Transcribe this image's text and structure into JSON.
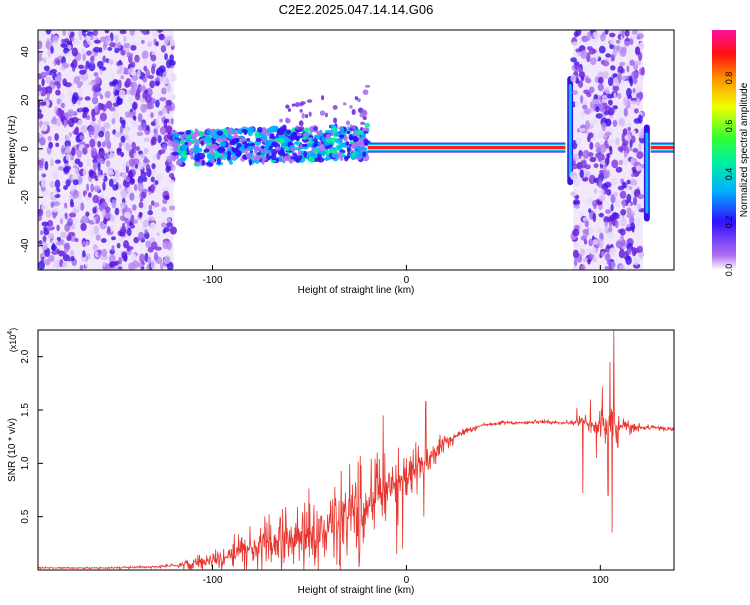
{
  "figure": {
    "title": "C2E2.2025.047.14.14.G06"
  },
  "chart_data": [
    {
      "type": "heatmap",
      "xlabel": "Height of straight line (km)",
      "ylabel": "Frequency (Hz)",
      "xlim": [
        -190,
        138
      ],
      "ylim": [
        -50,
        49
      ],
      "xticks": [
        -100,
        0,
        100
      ],
      "xtick_labels": [
        "-100",
        "0",
        "100"
      ],
      "yticks": [
        -40,
        -20,
        0,
        20,
        40
      ],
      "ytick_labels": [
        "-40",
        "-20",
        "0",
        "20",
        "40"
      ],
      "grid": false,
      "colorbar": {
        "label": "Normalized spectral amplitude",
        "range": [
          0,
          1
        ],
        "ticks": [
          0.0,
          0.2,
          0.4,
          0.6,
          0.8
        ],
        "tick_labels": [
          "0.0",
          "0.2",
          "0.4",
          "0.6",
          "0.8"
        ],
        "colormap": "rainbow (white/purple low to red/magenta high)"
      },
      "regions": [
        {
          "x": [
            -190,
            -120
          ],
          "y": [
            -50,
            49
          ],
          "amplitude": [
            0.05,
            0.25
          ],
          "pattern": "broadband noise"
        },
        {
          "x": [
            -120,
            -20
          ],
          "y": [
            -6,
            6
          ],
          "amplitude": [
            0.1,
            0.5
          ],
          "pattern": "noisy band"
        },
        {
          "x": [
            -20,
            82
          ],
          "y": [
            0,
            1
          ],
          "amplitude": [
            0.9,
            1.0
          ],
          "pattern": "narrow tone"
        },
        {
          "x": [
            83,
            86
          ],
          "y": [
            -15,
            30
          ],
          "amplitude": [
            0.2,
            0.5
          ],
          "pattern": "vertical streak"
        },
        {
          "x": [
            86,
            122
          ],
          "y": [
            -50,
            49
          ],
          "amplitude": [
            0.05,
            0.25
          ],
          "pattern": "broadband noise"
        },
        {
          "x": [
            122,
            126
          ],
          "y": [
            -30,
            10
          ],
          "amplitude": [
            0.2,
            0.5
          ],
          "pattern": "vertical streak"
        },
        {
          "x": [
            126,
            138
          ],
          "y": [
            0,
            1
          ],
          "amplitude": [
            0.9,
            1.0
          ],
          "pattern": "narrow tone"
        }
      ],
      "colors": {
        "tone": "#ff2020",
        "band_mid": "#2080ff",
        "noise": "#7a30e0"
      }
    },
    {
      "type": "line",
      "xlabel": "Height of straight line (km)",
      "ylabel": "SNR (10 * v/v)",
      "y_multiplier": "(x10⁴)",
      "y_multiplier_base": "(x10",
      "y_multiplier_exp": "4",
      "y_multiplier_close": ")",
      "xlim": [
        -190,
        138
      ],
      "ylim": [
        0,
        2.25
      ],
      "xticks": [
        -100,
        0,
        100
      ],
      "xtick_labels": [
        "-100",
        "0",
        "100"
      ],
      "yticks": [
        0.5,
        1.0,
        1.5,
        2.0
      ],
      "ytick_labels": [
        "0.5",
        "1.0",
        "1.5",
        "2.0"
      ],
      "grid": false,
      "series": [
        {
          "color": "#e8352e",
          "x": [
            -190,
            -170,
            -150,
            -130,
            -120,
            -110,
            -100,
            -90,
            -80,
            -70,
            -60,
            -50,
            -40,
            -30,
            -20,
            -10,
            0,
            10,
            20,
            30,
            40,
            50,
            60,
            70,
            80,
            85,
            90,
            95,
            100,
            105,
            110,
            120,
            130,
            138
          ],
          "y": [
            0.02,
            0.02,
            0.02,
            0.03,
            0.04,
            0.06,
            0.1,
            0.14,
            0.2,
            0.25,
            0.3,
            0.35,
            0.4,
            0.5,
            0.6,
            0.75,
            0.9,
            1.05,
            1.2,
            1.3,
            1.36,
            1.38,
            1.38,
            1.39,
            1.38,
            1.38,
            1.38,
            1.37,
            1.37,
            1.36,
            1.35,
            1.34,
            1.33,
            1.32
          ],
          "spread": [
            0.005,
            0.005,
            0.008,
            0.01,
            0.02,
            0.05,
            0.08,
            0.12,
            0.18,
            0.22,
            0.28,
            0.3,
            0.32,
            0.35,
            0.4,
            0.3,
            0.25,
            0.15,
            0.08,
            0.03,
            0.015,
            0.015,
            0.015,
            0.015,
            0.02,
            0.02,
            0.05,
            0.1,
            0.15,
            0.2,
            0.08,
            0.03,
            0.02,
            0.02
          ],
          "spikes": [
            {
              "x": -26,
              "y": 0.75
            },
            {
              "x": -15,
              "y": 1.1
            },
            {
              "x": -12,
              "y": 1.45
            },
            {
              "x": -5,
              "y": 0.15
            },
            {
              "x": -2,
              "y": 0.2
            },
            {
              "x": 9,
              "y": 0.5
            },
            {
              "x": 10,
              "y": 1.58
            },
            {
              "x": 88,
              "y": 1.52
            },
            {
              "x": 91,
              "y": 0.72
            },
            {
              "x": 95,
              "y": 1.6
            },
            {
              "x": 98,
              "y": 1.05
            },
            {
              "x": 101,
              "y": 1.72
            },
            {
              "x": 104,
              "y": 0.7
            },
            {
              "x": 105,
              "y": 1.95
            },
            {
              "x": 106,
              "y": 0.35
            },
            {
              "x": 107,
              "y": 2.25
            },
            {
              "x": 109,
              "y": 1.15
            },
            {
              "x": 112,
              "y": 1.42
            }
          ]
        }
      ]
    }
  ]
}
